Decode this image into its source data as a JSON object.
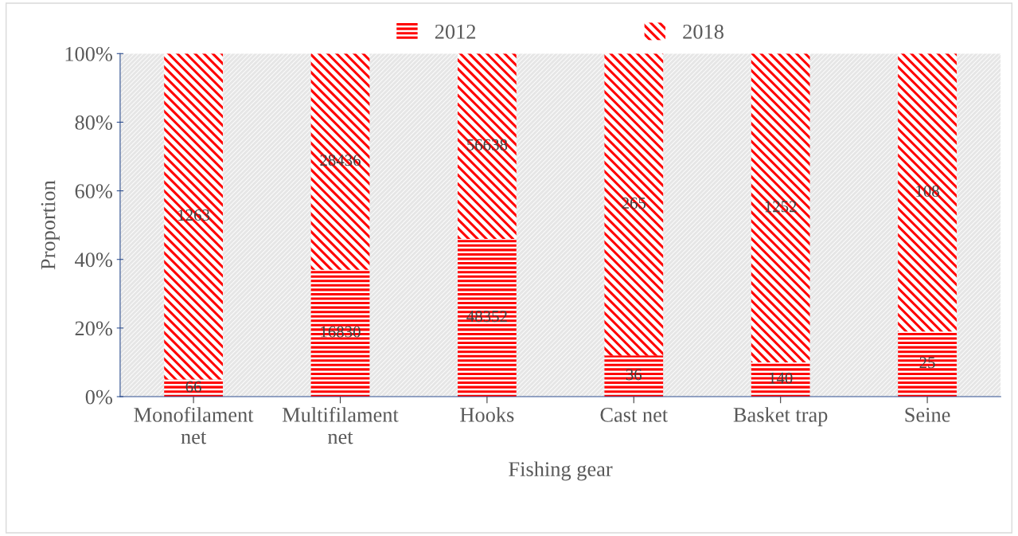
{
  "chart_data": {
    "type": "bar",
    "stacked": true,
    "xlabel": "Fishing gear",
    "ylabel": "Proportion",
    "categories": [
      "Monofilament\nnet",
      "Multifilament\nnet",
      "Hooks",
      "Cast net",
      "Basket trap",
      "Seine"
    ],
    "series": [
      {
        "name": "2012",
        "color": "#ff0000",
        "values": [
          5,
          37,
          46,
          12,
          10,
          19
        ]
      },
      {
        "name": "2018",
        "color": "#ff0000",
        "values": [
          95,
          63,
          54,
          88,
          90,
          81
        ]
      }
    ],
    "annotations": [
      "66",
      "16830",
      "48352",
      "36",
      "140",
      "25",
      "1263",
      "28436",
      "56638",
      "265",
      "1252",
      "108"
    ],
    "ylim": [
      0,
      100
    ],
    "yticks": [
      {
        "value": 0,
        "label": "0%"
      },
      {
        "value": 20,
        "label": "20%"
      },
      {
        "value": 40,
        "label": "40%"
      },
      {
        "value": 60,
        "label": "60%"
      },
      {
        "value": 80,
        "label": "80%"
      },
      {
        "value": 100,
        "label": "100%"
      }
    ],
    "legend": "top",
    "grid": false
  }
}
